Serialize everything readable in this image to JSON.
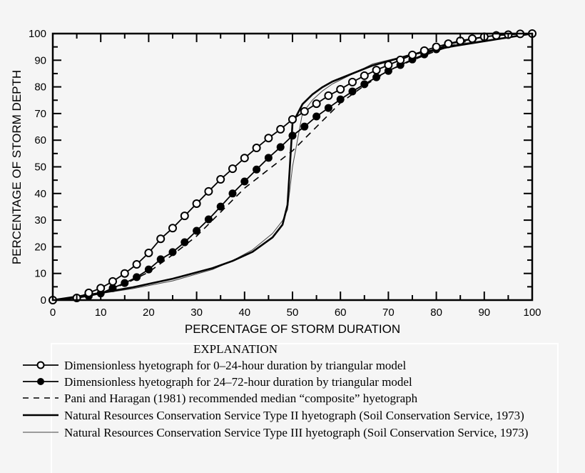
{
  "chart_data": {
    "type": "line",
    "title": "",
    "xlabel": "PERCENTAGE OF STORM DURATION",
    "ylabel": "PERCENTAGE OF STORM DEPTH",
    "xlim": [
      0,
      100
    ],
    "ylim": [
      0,
      100
    ],
    "xticks": [
      "0",
      "10",
      "20",
      "30",
      "40",
      "50",
      "60",
      "70",
      "80",
      "90",
      "100"
    ],
    "yticks": [
      "0",
      "10",
      "20",
      "30",
      "40",
      "50",
      "60",
      "70",
      "80",
      "90",
      "100"
    ],
    "grid": false,
    "legend_title": "EXPLANATION",
    "legend_position": "bottom",
    "series": [
      {
        "name": "Dimensionless hyetograph for 0–24-hour duration by triangular model",
        "style": "line-open-circles",
        "x": [
          0,
          5,
          7.5,
          10,
          12.5,
          15,
          17.5,
          20,
          22.5,
          25,
          27.5,
          30,
          32.5,
          35,
          37.5,
          40,
          42.5,
          45,
          47.5,
          50,
          52.5,
          55,
          57.5,
          60,
          62.5,
          65,
          67.5,
          70,
          72.5,
          75,
          77.5,
          80,
          82.5,
          85,
          87.5,
          90,
          92.5,
          95,
          97.5,
          100
        ],
        "y": [
          0,
          0.8,
          2.7,
          4.5,
          7,
          10,
          13.4,
          17.7,
          23,
          27,
          31.6,
          36.2,
          40.8,
          45.3,
          49.3,
          53.3,
          57.1,
          60.8,
          64.1,
          67.8,
          70.8,
          73.7,
          76.7,
          79.1,
          81.8,
          84.2,
          86.3,
          88.2,
          90.1,
          92,
          93.6,
          95,
          96.2,
          97.3,
          98.1,
          98.8,
          99.3,
          99.6,
          99.9,
          100
        ]
      },
      {
        "name": "Dimensionless hyetograph for 24–72-hour duration by triangular model",
        "style": "line-filled-circles",
        "x": [
          0,
          5,
          7.5,
          10,
          12.5,
          15,
          17.5,
          20,
          22.5,
          25,
          27.5,
          30,
          32.5,
          35,
          37.5,
          40,
          42.5,
          45,
          47.5,
          50,
          52.5,
          55,
          57.5,
          60,
          62.5,
          65,
          67.5,
          70,
          72.5,
          75,
          77.5,
          80,
          82.5,
          85,
          87.5,
          90,
          92.5,
          95,
          97.5,
          100
        ],
        "y": [
          0,
          0.8,
          1.5,
          2.5,
          4.5,
          6.4,
          8.6,
          11.5,
          15.3,
          18,
          21.7,
          26,
          30.3,
          35.1,
          40,
          44.5,
          49,
          53.4,
          57.4,
          61.7,
          65.1,
          68.9,
          72.1,
          75.3,
          78.3,
          81,
          83.6,
          86,
          88.2,
          90.3,
          92.2,
          94.1,
          96,
          97,
          98,
          98.7,
          99.4,
          99.6,
          99.9,
          100
        ]
      },
      {
        "name": "Pani and Haragan (1981) recommended median “composite” hyetograph",
        "style": "dashed",
        "x": [
          0,
          5,
          10,
          15,
          20,
          25,
          30,
          35,
          40,
          45,
          50,
          55,
          60,
          65,
          70,
          75,
          80,
          85,
          90,
          95,
          100
        ],
        "y": [
          0,
          1,
          3,
          6,
          10.5,
          17,
          24,
          33,
          42,
          49,
          56,
          65,
          74,
          80.5,
          86,
          90,
          93.5,
          96.5,
          98.5,
          99.5,
          100
        ]
      },
      {
        "name": "Natural Resources Conservation Service Type II hyetograph (Soil Conservation Service, 1973)",
        "style": "thick",
        "x": [
          0,
          8.33,
          16.67,
          25,
          33.33,
          37.5,
          41.67,
          45.83,
          47.92,
          48.96,
          50,
          52.08,
          54.17,
          56.25,
          58.33,
          66.67,
          75,
          83.33,
          100
        ],
        "y": [
          0,
          2.2,
          4.8,
          8,
          12,
          14.7,
          18.1,
          23.5,
          28.3,
          35.7,
          66.3,
          73.5,
          77.2,
          79.9,
          82,
          88,
          92.2,
          95.2,
          100
        ]
      },
      {
        "name": "Natural Resources Conservation Service Type III hyetograph (Soil Conservation Service, 1973)",
        "style": "thin",
        "x": [
          0,
          8.33,
          16.67,
          25,
          33.33,
          37.5,
          41.67,
          45.83,
          47.92,
          48.96,
          50,
          52.08,
          54.17,
          56.25,
          58.33,
          66.67,
          75,
          83.33,
          100
        ],
        "y": [
          0,
          2,
          4.3,
          7.2,
          11.5,
          14.8,
          18.9,
          25,
          29.8,
          33.9,
          50,
          70.2,
          75.1,
          78.5,
          81.1,
          88.6,
          92.2,
          95.7,
          100
        ]
      }
    ]
  }
}
